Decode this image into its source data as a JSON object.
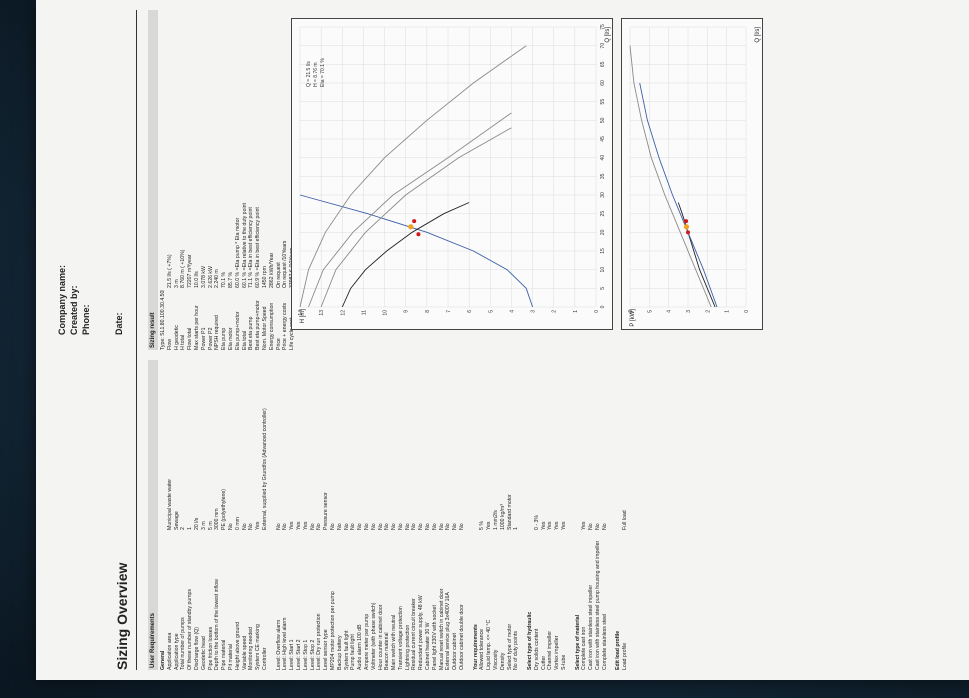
{
  "header": {
    "company_label": "Company name:",
    "created_label": "Created by:",
    "phone_label": "Phone:",
    "date_label": "Date:"
  },
  "title": "Sizing Overview",
  "user_requirements": {
    "heading": "User Requirements",
    "rows": [
      {
        "label": "General",
        "value": "",
        "bold": true
      },
      {
        "label": "Application area",
        "value": "Municipal waste water"
      },
      {
        "label": "Application type",
        "value": "Sewage"
      },
      {
        "label": "Total number of pumps",
        "value": "2"
      },
      {
        "label": "Of these number of standby pumps",
        "value": "1"
      },
      {
        "label": "Discharge flow (Q)",
        "value": "20 l/s"
      },
      {
        "label": "Geodetic head",
        "value": "3 m"
      },
      {
        "label": "Pipe friction losses",
        "value": "5 m"
      },
      {
        "label": "Depth to the bottom of the lowest inflow",
        "value": "3000 mm"
      },
      {
        "label": "Pipe material",
        "value": "PE (polyethylene)"
      },
      {
        "label": "Pit material",
        "value": "No"
      },
      {
        "label": "Height above ground",
        "value": "0 mm"
      },
      {
        "label": "Variable speed",
        "value": "No"
      },
      {
        "label": "Monitoring needed",
        "value": "No"
      },
      {
        "label": "System CE marking",
        "value": "Yes"
      },
      {
        "label": "Controller",
        "value": "External, supplied by Grundfos (Advanced controller)"
      },
      {
        "label": "",
        "value": ""
      },
      {
        "label": "Level: Overflow alarm",
        "value": "No"
      },
      {
        "label": "Level: High level alarm",
        "value": "No"
      },
      {
        "label": "Level: Start 1",
        "value": "Yes"
      },
      {
        "label": "Level: Start 2",
        "value": "Yes"
      },
      {
        "label": "Level: Stop 1",
        "value": "Yes"
      },
      {
        "label": "Level: Stop 2",
        "value": "No"
      },
      {
        "label": "Level: Dry run protection",
        "value": "No"
      },
      {
        "label": "Level sensor type",
        "value": "Pressure sensor"
      },
      {
        "label": "MP204 motor protection per pump",
        "value": "No"
      },
      {
        "label": "Backup battery",
        "value": "No"
      },
      {
        "label": "System fault light",
        "value": "No"
      },
      {
        "label": "Pump fault light",
        "value": "No"
      },
      {
        "label": "Audio alarm 100 dB",
        "value": "No"
      },
      {
        "label": "Ampere meter per pump",
        "value": "No"
      },
      {
        "label": "Voltmeter (with phase switch)",
        "value": "No"
      },
      {
        "label": "Hour counter in cabinet door",
        "value": "No"
      },
      {
        "label": "Beacon material",
        "value": "No"
      },
      {
        "label": "Main switch with neutral",
        "value": "No"
      },
      {
        "label": "Transient voltage protection",
        "value": "No"
      },
      {
        "label": "Lightning protection",
        "value": "No"
      },
      {
        "label": "Residual current circuit breaker",
        "value": "No"
      },
      {
        "label": "Redundant power supply, 48 kW",
        "value": "No"
      },
      {
        "label": "Cabinet heater 30 W",
        "value": "No"
      },
      {
        "label": "Panel light 230V with socket",
        "value": "No"
      },
      {
        "label": "Manual reset switch in cabinet door",
        "value": "No"
      },
      {
        "label": "External service plug 3x400V 16A",
        "value": "No"
      },
      {
        "label": "Outdoor cabinet",
        "value": "No"
      },
      {
        "label": "Outdoor cabinet double door",
        "value": "No"
      },
      {
        "label": "",
        "value": ""
      },
      {
        "label": "Your requirements",
        "value": "",
        "bold": true
      },
      {
        "label": "Allowed tolerance",
        "value": "5 %"
      },
      {
        "label": "Liquid temp. <= 40 °C",
        "value": "Yes"
      },
      {
        "label": "Viscosity",
        "value": "1 mm2/s"
      },
      {
        "label": "Density",
        "value": "1000 kg/m³"
      },
      {
        "label": "Select type of motor",
        "value": "Standard motor"
      },
      {
        "label": "No of duty points",
        "value": "1"
      },
      {
        "label": "",
        "value": ""
      },
      {
        "label": "Select type of hydraulic",
        "value": "",
        "bold": true
      },
      {
        "label": "Dry solids content",
        "value": "0 - 3%"
      },
      {
        "label": "Cutter",
        "value": "Yes"
      },
      {
        "label": "Channel impeller",
        "value": "Yes"
      },
      {
        "label": "Vortex impeller",
        "value": "Yes"
      },
      {
        "label": "S-tube",
        "value": "Yes"
      },
      {
        "label": "",
        "value": ""
      },
      {
        "label": "Select type of material",
        "value": "",
        "bold": true
      },
      {
        "label": "Complete cast iron",
        "value": "Yes"
      },
      {
        "label": "Cast iron with stainless steel impeller",
        "value": "No"
      },
      {
        "label": "Cast iron with stainless steel pump housing and impeller",
        "value": "No"
      },
      {
        "label": "Complete stainless steel",
        "value": "No"
      },
      {
        "label": "",
        "value": ""
      },
      {
        "label": "Edit load profile",
        "value": "",
        "bold": true
      },
      {
        "label": "Load profile",
        "value": "Full load"
      }
    ]
  },
  "sizing_result": {
    "heading": "Sizing result",
    "rows": [
      {
        "label": "Type: SL1.80.100.30.4.50E.C",
        "value": ""
      },
      {
        "label": "Flow",
        "value": "21.5 l/s ( +7%)"
      },
      {
        "label": "H geodetic",
        "value": "3 m"
      },
      {
        "label": "H total",
        "value": "8.760 m ( +10%)"
      },
      {
        "label": "Flow total",
        "value": "72207 m³/year"
      },
      {
        "label": "Max starts per hour",
        "value": "10.0 l/s"
      },
      {
        "label": "Power P1",
        "value": "3.078 kW"
      },
      {
        "label": "Power P2",
        "value": "2.626 kW"
      },
      {
        "label": "NPSH required",
        "value": "2.240 m"
      },
      {
        "label": "Eta pump",
        "value": "70.1 %"
      },
      {
        "label": "Eta motor",
        "value": "85.7 %"
      },
      {
        "label": "Eta pump+motor",
        "value": "60.0 % =Eta pump * Eta motor"
      },
      {
        "label": "Eta total",
        "value": "60.1 % =Eta relative to the duty point"
      },
      {
        "label": "Best eta pump",
        "value": "71.1 % =Eta in best efficiency point"
      },
      {
        "label": "Best eta pump+motor",
        "value": "60.9 % =Eta in best efficiency point"
      },
      {
        "label": "Nom. Motor Speed",
        "value": "1450 rpm"
      },
      {
        "label": "Energy consumption",
        "value": "2862 kWh/Year"
      },
      {
        "label": "Price",
        "value": "On request"
      },
      {
        "label": "Price + energy costs",
        "value": "On request /10Years"
      },
      {
        "label": "Life cycle cost",
        "value": "33987 € /10Years"
      }
    ]
  },
  "chart_data": [
    {
      "type": "line",
      "title": "",
      "ylabel": "H [m]",
      "xlabel": "Q [l/s]",
      "x_ticks": [
        0,
        5,
        10,
        15,
        20,
        25,
        30,
        35,
        40,
        45,
        50,
        55,
        60,
        65,
        70,
        75
      ],
      "y_ticks": [
        0,
        1,
        2,
        3,
        4,
        5,
        6,
        7,
        8,
        9,
        10,
        11,
        12,
        13,
        14
      ],
      "series": [
        {
          "role": "system curve",
          "x": [
            0,
            5,
            10,
            15,
            20,
            25,
            30
          ],
          "y": [
            3,
            3.3,
            4.2,
            5.8,
            8,
            10.8,
            14
          ]
        },
        {
          "role": "pump curve",
          "x": [
            0,
            5,
            10,
            15,
            20,
            25,
            28
          ],
          "y": [
            12,
            11.6,
            10.9,
            9.9,
            8.7,
            7.2,
            6
          ]
        },
        {
          "role": "pump curve 2",
          "x": [
            0,
            10,
            20,
            30,
            40,
            48
          ],
          "y": [
            13,
            12.3,
            10.9,
            9,
            6.5,
            4
          ]
        },
        {
          "role": "pump curve 3",
          "x": [
            0,
            10,
            20,
            30,
            40,
            52
          ],
          "y": [
            13.6,
            12.9,
            11.5,
            9.6,
            7,
            4
          ]
        },
        {
          "role": "pump curve 4",
          "x": [
            0,
            10,
            20,
            30,
            40,
            50,
            60,
            70
          ],
          "y": [
            14,
            13.6,
            12.8,
            11.6,
            10,
            8,
            5.8,
            3.3
          ]
        }
      ],
      "duty_points": [
        {
          "x": 21.5,
          "y": 8.76
        },
        {
          "x": 19.5,
          "y": 8.4
        },
        {
          "x": 23,
          "y": 8.6
        }
      ],
      "annotations": [
        "Q = 21.5 l/s",
        "H = 8.76 m",
        "Eta = 70.1 %"
      ]
    },
    {
      "type": "line",
      "title": "",
      "ylabel": "P [kW]",
      "xlabel": "Q [l/s]",
      "y_ticks": [
        0,
        1,
        2,
        3,
        4,
        5,
        6
      ],
      "series": [
        {
          "role": "power curve",
          "x": [
            0,
            5,
            10,
            15,
            20,
            25,
            28
          ],
          "y": [
            1.6,
            2.0,
            2.4,
            2.7,
            3.0,
            3.3,
            3.5
          ]
        },
        {
          "role": "power curve 2",
          "x": [
            0,
            10,
            20,
            30,
            40,
            50,
            60,
            70
          ],
          "y": [
            1.8,
            2.6,
            3.4,
            4.2,
            4.9,
            5.4,
            5.8,
            6.0
          ]
        },
        {
          "role": "power curve 3",
          "x": [
            0,
            10,
            20,
            30,
            40,
            50,
            60
          ],
          "y": [
            1.5,
            2.2,
            3.0,
            3.8,
            4.5,
            5.1,
            5.5
          ]
        }
      ],
      "duty_points": [
        {
          "x": 21.5,
          "y": 3.08
        },
        {
          "x": 20,
          "y": 3.0
        },
        {
          "x": 23,
          "y": 3.1
        }
      ]
    }
  ],
  "colors": {
    "paper": "#f4f4f2",
    "curve_blue": "#3d5fa8",
    "curve_dark": "#222222",
    "curve_gray": "#8a8a8a",
    "point_red": "#d11a1a",
    "point_orange": "#f2a31e"
  }
}
